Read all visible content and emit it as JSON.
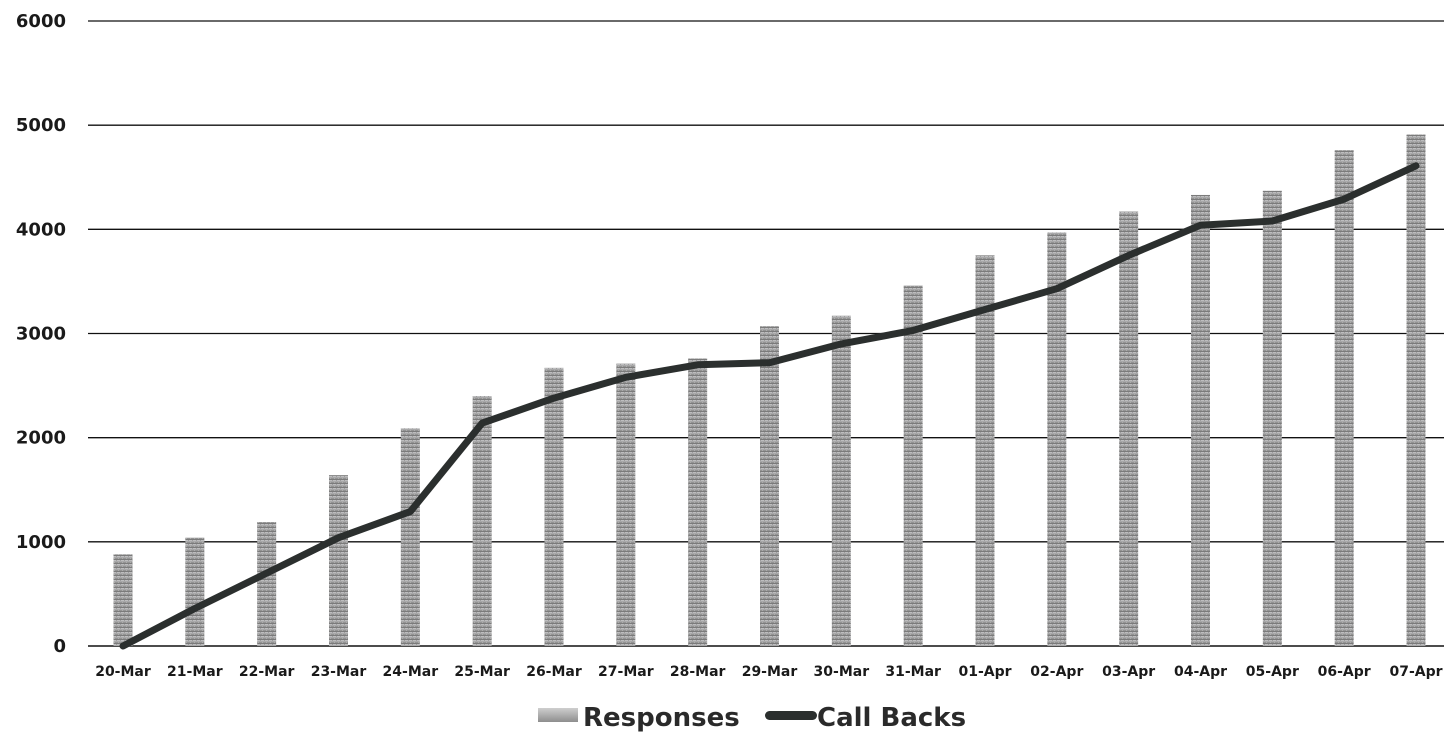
{
  "chart_data": {
    "type": "bar",
    "title": "",
    "xlabel": "",
    "ylabel": "",
    "ylim": [
      0,
      6000
    ],
    "yticks": [
      0,
      1000,
      2000,
      3000,
      4000,
      5000,
      6000
    ],
    "grid": true,
    "legend_position": "bottom",
    "categories": [
      "20-Mar",
      "21-Mar",
      "22-Mar",
      "23-Mar",
      "24-Mar",
      "25-Mar",
      "26-Mar",
      "27-Mar",
      "28-Mar",
      "29-Mar",
      "30-Mar",
      "31-Mar",
      "01-Apr",
      "02-Apr",
      "03-Apr",
      "04-Apr",
      "05-Apr",
      "06-Apr",
      "07-Apr"
    ],
    "series": [
      {
        "name": "Responses",
        "type": "bar",
        "color": "#a9a9a9",
        "values": [
          880,
          1040,
          1190,
          1640,
          2090,
          2400,
          2670,
          2710,
          2760,
          3070,
          3170,
          3460,
          3750,
          3970,
          4170,
          4330,
          4370,
          4760,
          4910
        ]
      },
      {
        "name": "Call Backs",
        "type": "line",
        "color": "#2b2f2e",
        "values": [
          0,
          360,
          700,
          1040,
          1290,
          2140,
          2380,
          2580,
          2700,
          2720,
          2900,
          3030,
          3230,
          3430,
          3750,
          4040,
          4080,
          4290,
          4610
        ]
      }
    ]
  }
}
